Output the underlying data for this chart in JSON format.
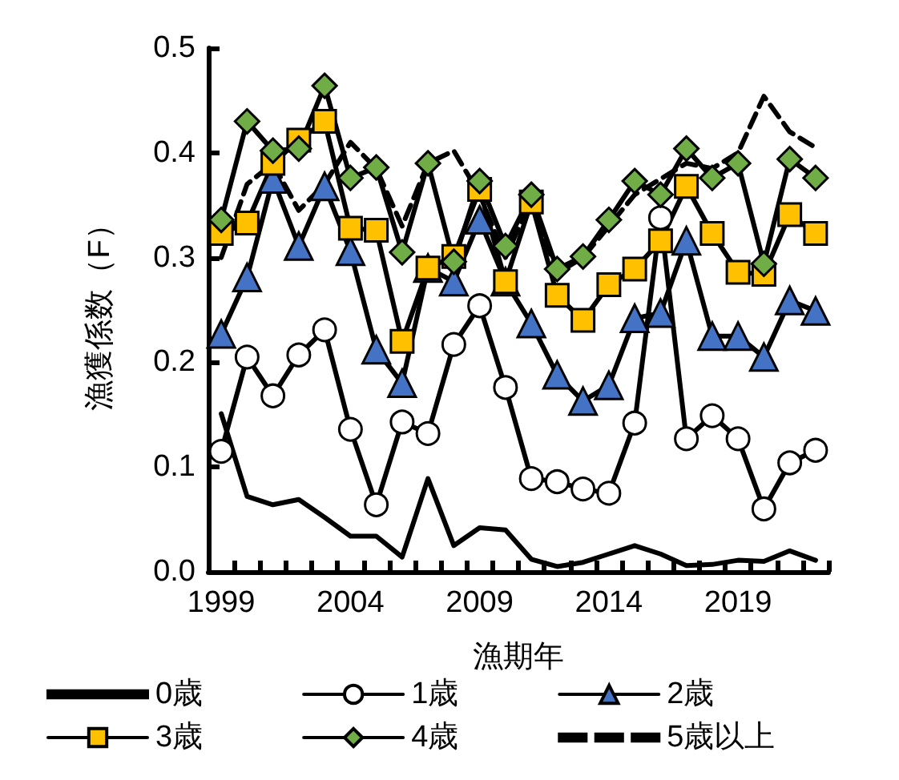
{
  "chart_data": {
    "type": "line",
    "xlabel": "漁期年",
    "ylabel": "漁獲係数（F）",
    "categories": [
      "1999",
      null,
      null,
      null,
      null,
      "2004",
      null,
      null,
      null,
      null,
      "2009",
      null,
      null,
      null,
      null,
      "2014",
      null,
      null,
      null,
      null,
      "2019",
      null,
      null,
      null
    ],
    "ylim": [
      0,
      0.5
    ],
    "yticks": [
      {
        "value": 0,
        "label": "0.0"
      },
      {
        "value": 0.1,
        "label": "0.1"
      },
      {
        "value": 0.2,
        "label": "0.2"
      },
      {
        "value": 0.3,
        "label": "0.3"
      },
      {
        "value": 0.4,
        "label": "0.4"
      },
      {
        "value": 0.5,
        "label": "0.5"
      }
    ],
    "grid": false,
    "legend": "bottom",
    "line_style": "solid",
    "series": [
      {
        "name": "0歳",
        "color": "#000000",
        "marker": "none",
        "values": [
          0.151,
          0.072,
          0.064,
          0.069,
          0.052,
          0.034,
          0.034,
          0.014,
          0.089,
          0.025,
          0.042,
          0.04,
          0.012,
          0.005,
          0.009,
          0.017,
          0.025,
          0.017,
          0.006,
          0.007,
          0.011,
          0.01,
          0.02,
          0.011
        ]
      },
      {
        "name": "1歳",
        "color": "#ffffff",
        "marker": "circle",
        "values": [
          0.115,
          0.205,
          0.168,
          0.207,
          0.231,
          0.136,
          0.064,
          0.143,
          0.132,
          0.217,
          0.254,
          0.176,
          0.089,
          0.086,
          0.079,
          0.075,
          0.142,
          0.338,
          0.127,
          0.149,
          0.127,
          0.06,
          0.104,
          0.116
        ]
      },
      {
        "name": "2歳",
        "color": "#4472c4",
        "marker": "triangle",
        "values": [
          0.227,
          0.281,
          0.375,
          0.311,
          0.368,
          0.306,
          0.212,
          0.18,
          0.29,
          0.277,
          0.336,
          0.277,
          0.237,
          0.188,
          0.163,
          0.178,
          0.242,
          0.247,
          0.316,
          0.225,
          0.225,
          0.205,
          0.259,
          0.249
        ]
      },
      {
        "name": "3歳",
        "color": "#ffc000",
        "marker": "square",
        "values": [
          0.323,
          0.333,
          0.39,
          0.412,
          0.43,
          0.328,
          0.326,
          0.22,
          0.29,
          0.301,
          0.365,
          0.277,
          0.353,
          0.264,
          0.24,
          0.274,
          0.289,
          0.316,
          0.368,
          0.323,
          0.286,
          0.284,
          0.341,
          0.323
        ]
      },
      {
        "name": "4歳",
        "color": "#70ad47",
        "marker": "diamond",
        "values": [
          0.336,
          0.43,
          0.402,
          0.404,
          0.464,
          0.376,
          0.386,
          0.305,
          0.39,
          0.296,
          0.373,
          0.311,
          0.36,
          0.289,
          0.301,
          0.336,
          0.373,
          0.36,
          0.404,
          0.376,
          0.39,
          0.294,
          0.394,
          0.376
        ]
      },
      {
        "name": "5歳以上",
        "color": "#000000",
        "marker": "none",
        "line_style": "dashed",
        "values": [
          0.3,
          0.37,
          0.39,
          0.345,
          0.37,
          0.41,
          0.385,
          0.33,
          0.39,
          0.402,
          0.36,
          0.3,
          0.355,
          0.285,
          0.3,
          0.33,
          0.36,
          0.375,
          0.39,
          0.385,
          0.4,
          0.454,
          0.42,
          0.405
        ]
      }
    ]
  }
}
